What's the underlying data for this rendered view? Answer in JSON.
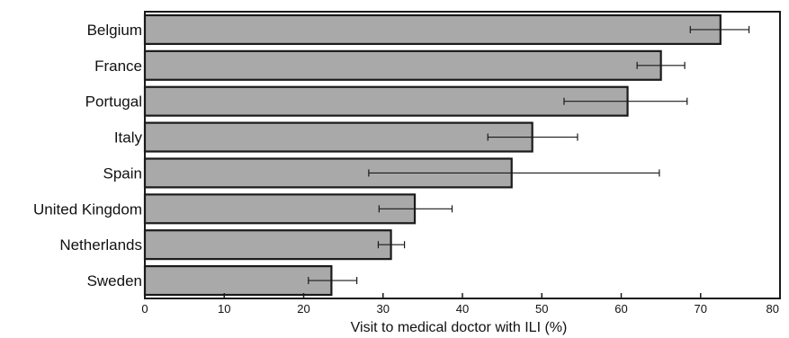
{
  "chart_data": {
    "type": "bar",
    "orientation": "horizontal",
    "categories": [
      "Belgium",
      "France",
      "Portugal",
      "Italy",
      "Spain",
      "United Kingdom",
      "Netherlands",
      "Sweden"
    ],
    "values": [
      72.5,
      65.0,
      60.8,
      48.8,
      46.2,
      34.0,
      31.0,
      23.5
    ],
    "error_low": [
      68.7,
      62.0,
      52.8,
      43.2,
      28.2,
      29.5,
      29.4,
      20.6
    ],
    "error_high": [
      76.1,
      68.0,
      68.3,
      54.5,
      64.8,
      38.7,
      32.7,
      26.7
    ],
    "xlabel": "Visit to medical doctor with ILI (%)",
    "ylabel": "",
    "xlim": [
      0,
      80
    ],
    "xticks": [
      "0",
      "10",
      "20",
      "30",
      "40",
      "50",
      "60",
      "70",
      "80"
    ],
    "grid": false,
    "colors": {
      "bar_fill": "#a9a9aa",
      "bar_stroke": "#1a1a1a",
      "axis": "#1a1a1a"
    }
  }
}
